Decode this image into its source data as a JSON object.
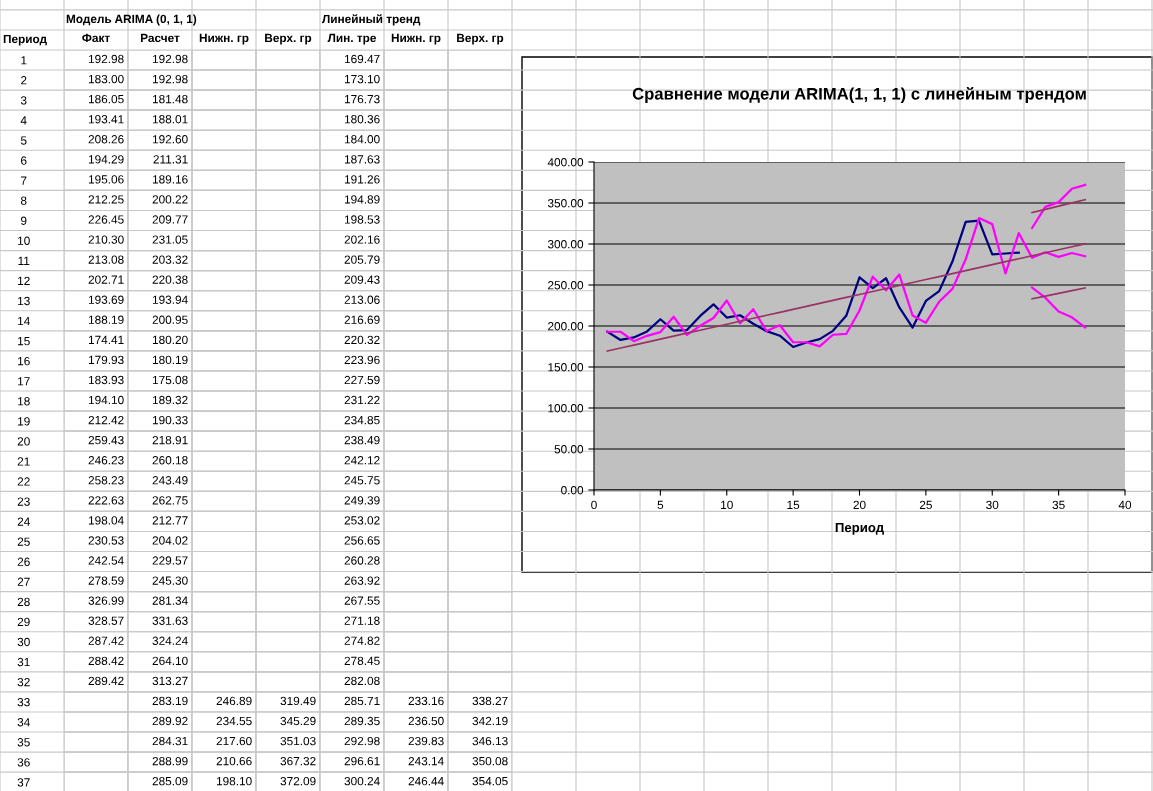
{
  "chart_data": [
    {
      "type": "heatmap",
      "ylabel": "Период",
      "annotations": [
        "Модель ARIMA (0, 1, 1)",
        "Линейный тренд"
      ],
      "categories": [
        "Факт",
        "Расчет",
        "Нижн. гр",
        "Верх. гр",
        "Лин. тре",
        "Нижн. гр",
        "Верх. гр"
      ],
      "y_categories": [
        "1",
        "2",
        "3",
        "4",
        "5",
        "6",
        "7",
        "8",
        "9",
        "10",
        "11",
        "12",
        "13",
        "14",
        "15",
        "16",
        "17",
        "18",
        "19",
        "20",
        "21",
        "22",
        "23",
        "24",
        "25",
        "26",
        "27",
        "28",
        "29",
        "30",
        "31",
        "32",
        "33",
        "34",
        "35",
        "36",
        "37"
      ],
      "cells": [
        [
          192.98,
          192.98,
          null,
          null,
          169.47,
          null,
          null
        ],
        [
          183.0,
          192.98,
          null,
          null,
          173.1,
          null,
          null
        ],
        [
          186.05,
          181.48,
          null,
          null,
          176.73,
          null,
          null
        ],
        [
          193.41,
          188.01,
          null,
          null,
          180.36,
          null,
          null
        ],
        [
          208.26,
          192.6,
          null,
          null,
          184.0,
          null,
          null
        ],
        [
          194.29,
          211.31,
          null,
          null,
          187.63,
          null,
          null
        ],
        [
          195.06,
          189.16,
          null,
          null,
          191.26,
          null,
          null
        ],
        [
          212.25,
          200.22,
          null,
          null,
          194.89,
          null,
          null
        ],
        [
          226.45,
          209.77,
          null,
          null,
          198.53,
          null,
          null
        ],
        [
          210.3,
          231.05,
          null,
          null,
          202.16,
          null,
          null
        ],
        [
          213.08,
          203.32,
          null,
          null,
          205.79,
          null,
          null
        ],
        [
          202.71,
          220.38,
          null,
          null,
          209.43,
          null,
          null
        ],
        [
          193.69,
          193.94,
          null,
          null,
          213.06,
          null,
          null
        ],
        [
          188.19,
          200.95,
          null,
          null,
          216.69,
          null,
          null
        ],
        [
          174.41,
          180.2,
          null,
          null,
          220.32,
          null,
          null
        ],
        [
          179.93,
          180.19,
          null,
          null,
          223.96,
          null,
          null
        ],
        [
          183.93,
          175.08,
          null,
          null,
          227.59,
          null,
          null
        ],
        [
          194.1,
          189.32,
          null,
          null,
          231.22,
          null,
          null
        ],
        [
          212.42,
          190.33,
          null,
          null,
          234.85,
          null,
          null
        ],
        [
          259.43,
          218.91,
          null,
          null,
          238.49,
          null,
          null
        ],
        [
          246.23,
          260.18,
          null,
          null,
          242.12,
          null,
          null
        ],
        [
          258.23,
          243.49,
          null,
          null,
          245.75,
          null,
          null
        ],
        [
          222.63,
          262.75,
          null,
          null,
          249.39,
          null,
          null
        ],
        [
          198.04,
          212.77,
          null,
          null,
          253.02,
          null,
          null
        ],
        [
          230.53,
          204.02,
          null,
          null,
          256.65,
          null,
          null
        ],
        [
          242.54,
          229.57,
          null,
          null,
          260.28,
          null,
          null
        ],
        [
          278.59,
          245.3,
          null,
          null,
          263.92,
          null,
          null
        ],
        [
          326.99,
          281.34,
          null,
          null,
          267.55,
          null,
          null
        ],
        [
          328.57,
          331.63,
          null,
          null,
          271.18,
          null,
          null
        ],
        [
          287.42,
          324.24,
          null,
          null,
          274.82,
          null,
          null
        ],
        [
          288.42,
          264.1,
          null,
          null,
          278.45,
          null,
          null
        ],
        [
          289.42,
          313.27,
          null,
          null,
          282.08,
          null,
          null
        ],
        [
          null,
          283.19,
          246.89,
          319.49,
          285.71,
          233.16,
          338.27
        ],
        [
          null,
          289.92,
          234.55,
          345.29,
          289.35,
          236.5,
          342.19
        ],
        [
          null,
          284.31,
          217.6,
          351.03,
          292.98,
          239.83,
          346.13
        ],
        [
          null,
          288.99,
          210.66,
          367.32,
          296.61,
          243.14,
          350.08
        ],
        [
          null,
          285.09,
          198.1,
          372.09,
          300.24,
          246.44,
          354.05
        ]
      ],
      "cell_labels": [
        [
          "192.98",
          "192.98",
          null,
          null,
          "169.47",
          null,
          null
        ],
        [
          "183.00",
          "192.98",
          null,
          null,
          "173.10",
          null,
          null
        ],
        [
          "186.05",
          "181.48",
          null,
          null,
          "176.73",
          null,
          null
        ],
        [
          "193.41",
          "188.01",
          null,
          null,
          "180.36",
          null,
          null
        ],
        [
          "208.26",
          "192.60",
          null,
          null,
          "184.00",
          null,
          null
        ],
        [
          "194.29",
          "211.31",
          null,
          null,
          "187.63",
          null,
          null
        ],
        [
          "195.06",
          "189.16",
          null,
          null,
          "191.26",
          null,
          null
        ],
        [
          "212.25",
          "200.22",
          null,
          null,
          "194.89",
          null,
          null
        ],
        [
          "226.45",
          "209.77",
          null,
          null,
          "198.53",
          null,
          null
        ],
        [
          "210.30",
          "231.05",
          null,
          null,
          "202.16",
          null,
          null
        ],
        [
          "213.08",
          "203.32",
          null,
          null,
          "205.79",
          null,
          null
        ],
        [
          "202.71",
          "220.38",
          null,
          null,
          "209.43",
          null,
          null
        ],
        [
          "193.69",
          "193.94",
          null,
          null,
          "213.06",
          null,
          null
        ],
        [
          "188.19",
          "200.95",
          null,
          null,
          "216.69",
          null,
          null
        ],
        [
          "174.41",
          "180.20",
          null,
          null,
          "220.32",
          null,
          null
        ],
        [
          "179.93",
          "180.19",
          null,
          null,
          "223.96",
          null,
          null
        ],
        [
          "183.93",
          "175.08",
          null,
          null,
          "227.59",
          null,
          null
        ],
        [
          "194.10",
          "189.32",
          null,
          null,
          "231.22",
          null,
          null
        ],
        [
          "212.42",
          "190.33",
          null,
          null,
          "234.85",
          null,
          null
        ],
        [
          "259.43",
          "218.91",
          null,
          null,
          "238.49",
          null,
          null
        ],
        [
          "246.23",
          "260.18",
          null,
          null,
          "242.12",
          null,
          null
        ],
        [
          "258.23",
          "243.49",
          null,
          null,
          "245.75",
          null,
          null
        ],
        [
          "222.63",
          "262.75",
          null,
          null,
          "249.39",
          null,
          null
        ],
        [
          "198.04",
          "212.77",
          null,
          null,
          "253.02",
          null,
          null
        ],
        [
          "230.53",
          "204.02",
          null,
          null,
          "256.65",
          null,
          null
        ],
        [
          "242.54",
          "229.57",
          null,
          null,
          "260.28",
          null,
          null
        ],
        [
          "278.59",
          "245.30",
          null,
          null,
          "263.92",
          null,
          null
        ],
        [
          "326.99",
          "281.34",
          null,
          null,
          "267.55",
          null,
          null
        ],
        [
          "328.57",
          "331.63",
          null,
          null,
          "271.18",
          null,
          null
        ],
        [
          "287.42",
          "324.24",
          null,
          null,
          "274.82",
          null,
          null
        ],
        [
          "288.42",
          "264.10",
          null,
          null,
          "278.45",
          null,
          null
        ],
        [
          "289.42",
          "313.27",
          null,
          null,
          "282.08",
          null,
          null
        ],
        [
          null,
          "283.19",
          "246.89",
          "319.49",
          "285.71",
          "233.16",
          "338.27"
        ],
        [
          null,
          "289.92",
          "234.55",
          "345.29",
          "289.35",
          "236.50",
          "342.19"
        ],
        [
          null,
          "284.31",
          "217.60",
          "351.03",
          "292.98",
          "239.83",
          "346.13"
        ],
        [
          null,
          "288.99",
          "210.66",
          "367.32",
          "296.61",
          "243.14",
          "350.08"
        ],
        [
          null,
          "285.09",
          "198.10",
          "372.09",
          "300.24",
          "246.44",
          "354.05"
        ]
      ]
    },
    {
      "type": "line",
      "title": "Сравнение модели ARIMA(1, 1, 1) с линейным трендом",
      "xlabel": "Период",
      "series": [
        {
          "color": "#000080",
          "x": [
            1,
            2,
            3,
            4,
            5,
            6,
            7,
            8,
            9,
            10,
            11,
            12,
            13,
            14,
            15,
            16,
            17,
            18,
            19,
            20,
            21,
            22,
            23,
            24,
            25,
            26,
            27,
            28,
            29,
            30,
            31,
            32
          ],
          "values": [
            192.98,
            183.0,
            186.05,
            193.41,
            208.26,
            194.29,
            195.06,
            212.25,
            226.45,
            210.3,
            213.08,
            202.71,
            193.69,
            188.19,
            174.41,
            179.93,
            183.93,
            194.1,
            212.42,
            259.43,
            246.23,
            258.23,
            222.63,
            198.04,
            230.53,
            242.54,
            278.59,
            326.99,
            328.57,
            287.42,
            288.42,
            289.42
          ]
        },
        {
          "color": "#ff00ff",
          "x": [
            1,
            2,
            3,
            4,
            5,
            6,
            7,
            8,
            9,
            10,
            11,
            12,
            13,
            14,
            15,
            16,
            17,
            18,
            19,
            20,
            21,
            22,
            23,
            24,
            25,
            26,
            27,
            28,
            29,
            30,
            31,
            32,
            33,
            34,
            35,
            36,
            37
          ],
          "values": [
            192.98,
            192.98,
            181.48,
            188.01,
            192.6,
            211.31,
            189.16,
            200.22,
            209.77,
            231.05,
            203.32,
            220.38,
            193.94,
            200.95,
            180.2,
            180.19,
            175.08,
            189.32,
            190.33,
            218.91,
            260.18,
            243.49,
            262.75,
            212.77,
            204.02,
            229.57,
            245.3,
            281.34,
            331.63,
            324.24,
            264.1,
            313.27,
            283.19,
            289.92,
            284.31,
            288.99,
            285.09
          ]
        },
        {
          "color": "#ff00ff",
          "x": [
            33,
            34,
            35,
            36,
            37
          ],
          "values": [
            246.89,
            234.55,
            217.6,
            210.66,
            198.1
          ]
        },
        {
          "color": "#ff00ff",
          "x": [
            33,
            34,
            35,
            36,
            37
          ],
          "values": [
            319.49,
            345.29,
            351.03,
            367.32,
            372.09
          ]
        },
        {
          "color": "#993366",
          "x": [
            1,
            2,
            3,
            4,
            5,
            6,
            7,
            8,
            9,
            10,
            11,
            12,
            13,
            14,
            15,
            16,
            17,
            18,
            19,
            20,
            21,
            22,
            23,
            24,
            25,
            26,
            27,
            28,
            29,
            30,
            31,
            32,
            33,
            34,
            35,
            36,
            37
          ],
          "values": [
            169.47,
            173.1,
            176.73,
            180.36,
            184.0,
            187.63,
            191.26,
            194.89,
            198.53,
            202.16,
            205.79,
            209.43,
            213.06,
            216.69,
            220.32,
            223.96,
            227.59,
            231.22,
            234.85,
            238.49,
            242.12,
            245.75,
            249.39,
            253.02,
            256.65,
            260.28,
            263.92,
            267.55,
            271.18,
            274.82,
            278.45,
            282.08,
            285.71,
            289.35,
            292.98,
            296.61,
            300.24
          ]
        },
        {
          "color": "#993366",
          "x": [
            33,
            34,
            35,
            36,
            37
          ],
          "values": [
            233.16,
            236.5,
            239.83,
            243.14,
            246.44
          ]
        },
        {
          "color": "#993366",
          "x": [
            33,
            34,
            35,
            36,
            37
          ],
          "values": [
            338.27,
            342.19,
            346.13,
            350.08,
            354.05
          ]
        }
      ],
      "xlim": [
        0,
        40
      ],
      "xticks": [
        0,
        5,
        10,
        15,
        20,
        25,
        30,
        35,
        40
      ],
      "ylim": [
        0,
        400
      ],
      "yticks": [
        {
          "value": 0,
          "label": "0.00"
        },
        {
          "value": 50,
          "label": "50.00"
        },
        {
          "value": 100,
          "label": "100.00"
        },
        {
          "value": 150,
          "label": "150.00"
        },
        {
          "value": 200,
          "label": "200.00"
        },
        {
          "value": 250,
          "label": "250.00"
        },
        {
          "value": 300,
          "label": "300.00"
        },
        {
          "value": 350,
          "label": "350.00"
        },
        {
          "value": 400,
          "label": "400.00"
        }
      ],
      "grid": "y",
      "marker": "none",
      "line_style": "solid"
    }
  ]
}
